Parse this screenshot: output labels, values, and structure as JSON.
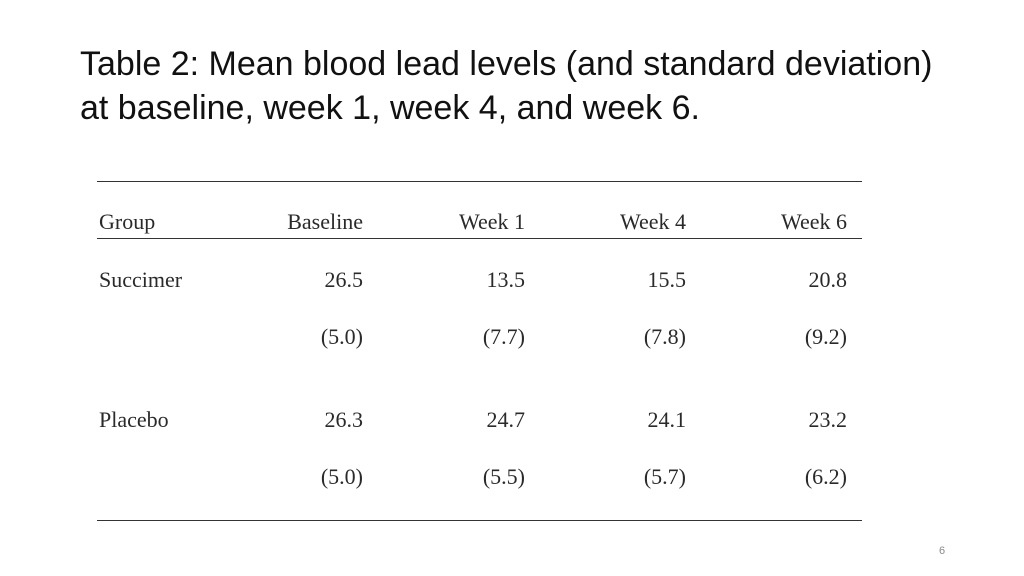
{
  "slide": {
    "title": "Table 2: Mean blood lead levels (and standard deviation) at baseline, week 1, week 4, and week 6.",
    "page_number": "6"
  },
  "table": {
    "headers": [
      "Group",
      "Baseline",
      "Week 1",
      "Week 4",
      "Week 6"
    ],
    "rows": [
      {
        "group": "Succimer",
        "means": [
          "26.5",
          "13.5",
          "15.5",
          "20.8"
        ],
        "sds": [
          "(5.0)",
          "(7.7)",
          "(7.8)",
          "(9.2)"
        ]
      },
      {
        "group": "Placebo",
        "means": [
          "26.3",
          "24.7",
          "24.1",
          "23.2"
        ],
        "sds": [
          "(5.0)",
          "(5.5)",
          "(5.7)",
          "(6.2)"
        ]
      }
    ]
  }
}
